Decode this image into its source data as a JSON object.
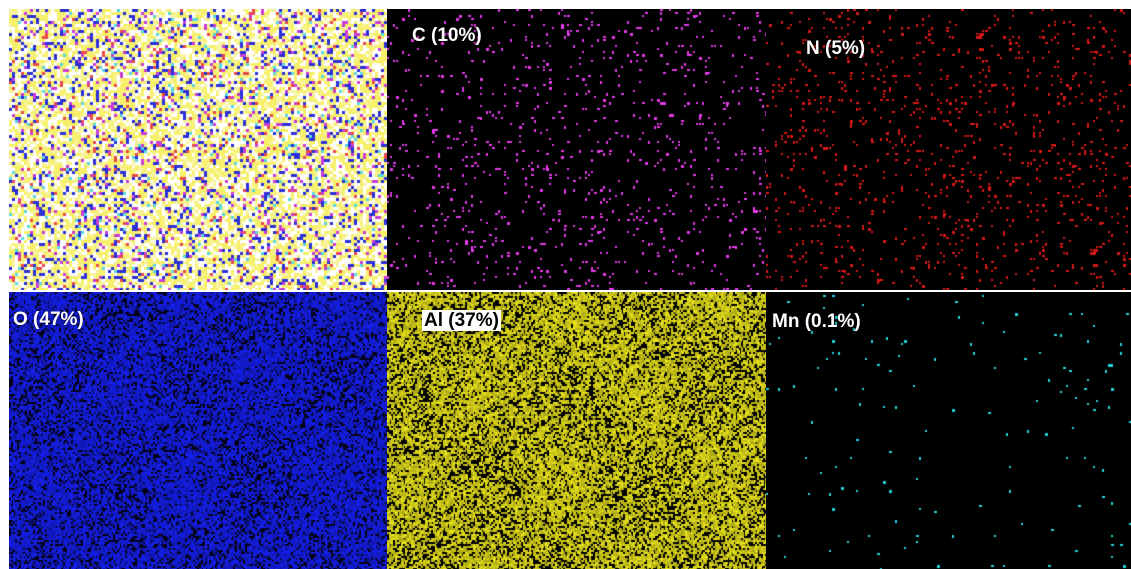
{
  "panels": [
    {
      "id": "overlay",
      "label": "",
      "color": "#ffffff",
      "bg": "#ffffff",
      "kind": "overlay"
    },
    {
      "id": "carbon",
      "label": "C (10%)",
      "color": "#e23ce8",
      "bg": "#000000",
      "kind": "sparse",
      "density": 0.07
    },
    {
      "id": "nitrogen",
      "label": "N (5%)",
      "color": "#d81818",
      "bg": "#000000",
      "kind": "sparse",
      "density": 0.09
    },
    {
      "id": "oxygen",
      "label": "O (47%)",
      "color": "#1620f0",
      "bg": "#040418",
      "kind": "dense",
      "density": 0.72
    },
    {
      "id": "aluminum",
      "label": "Al (37%)",
      "color": "#ece61c",
      "bg": "#000000",
      "kind": "dense",
      "density": 0.66
    },
    {
      "id": "manganese",
      "label": "Mn (0.1%)",
      "color": "#22d6dc",
      "bg": "#000000",
      "kind": "sparse",
      "density": 0.012
    }
  ]
}
